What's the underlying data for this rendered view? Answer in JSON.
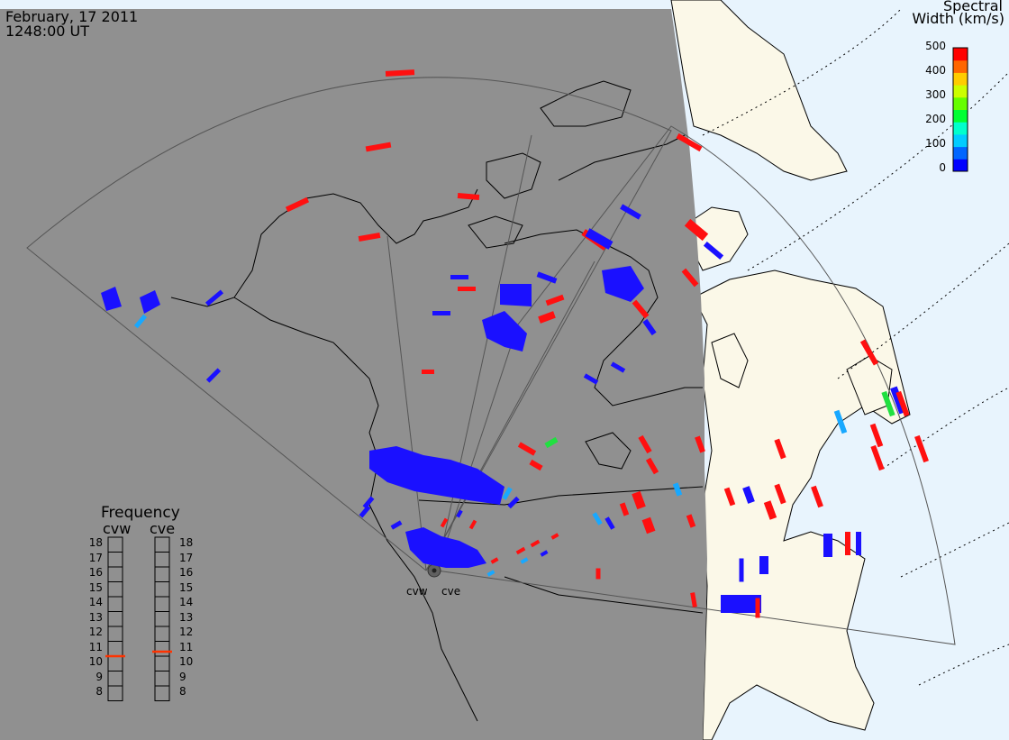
{
  "header": {
    "date": "February, 17 2011",
    "time": "1248:00 UT"
  },
  "colorbar": {
    "title_line1": "Spectral",
    "title_line2": "Width (km/s)",
    "ticks": [
      "500",
      "400",
      "300",
      "200",
      "100",
      "0"
    ],
    "colors": [
      "#0000ff",
      "#0066ff",
      "#00ccff",
      "#00ffcc",
      "#00ff33",
      "#66ff00",
      "#ccff00",
      "#ffcc00",
      "#ff6600",
      "#ff0000"
    ]
  },
  "frequency": {
    "title": "Frequency",
    "left_radar": "cvw",
    "right_radar": "cve",
    "levels": [
      "18",
      "17",
      "16",
      "15",
      "14",
      "13",
      "12",
      "11",
      "10",
      "9",
      "8"
    ],
    "cvw_value": 10.5,
    "cve_value": 10.8,
    "indicator_color": "#ff3300"
  },
  "radars": [
    {
      "name": "cvw"
    },
    {
      "name": "cve"
    }
  ],
  "colors": {
    "night": "#909090",
    "land_day": "#fbf8e8",
    "ocean_day": "#e8f4fd",
    "low_width": "#1a10ff",
    "high_width": "#ff1010"
  }
}
